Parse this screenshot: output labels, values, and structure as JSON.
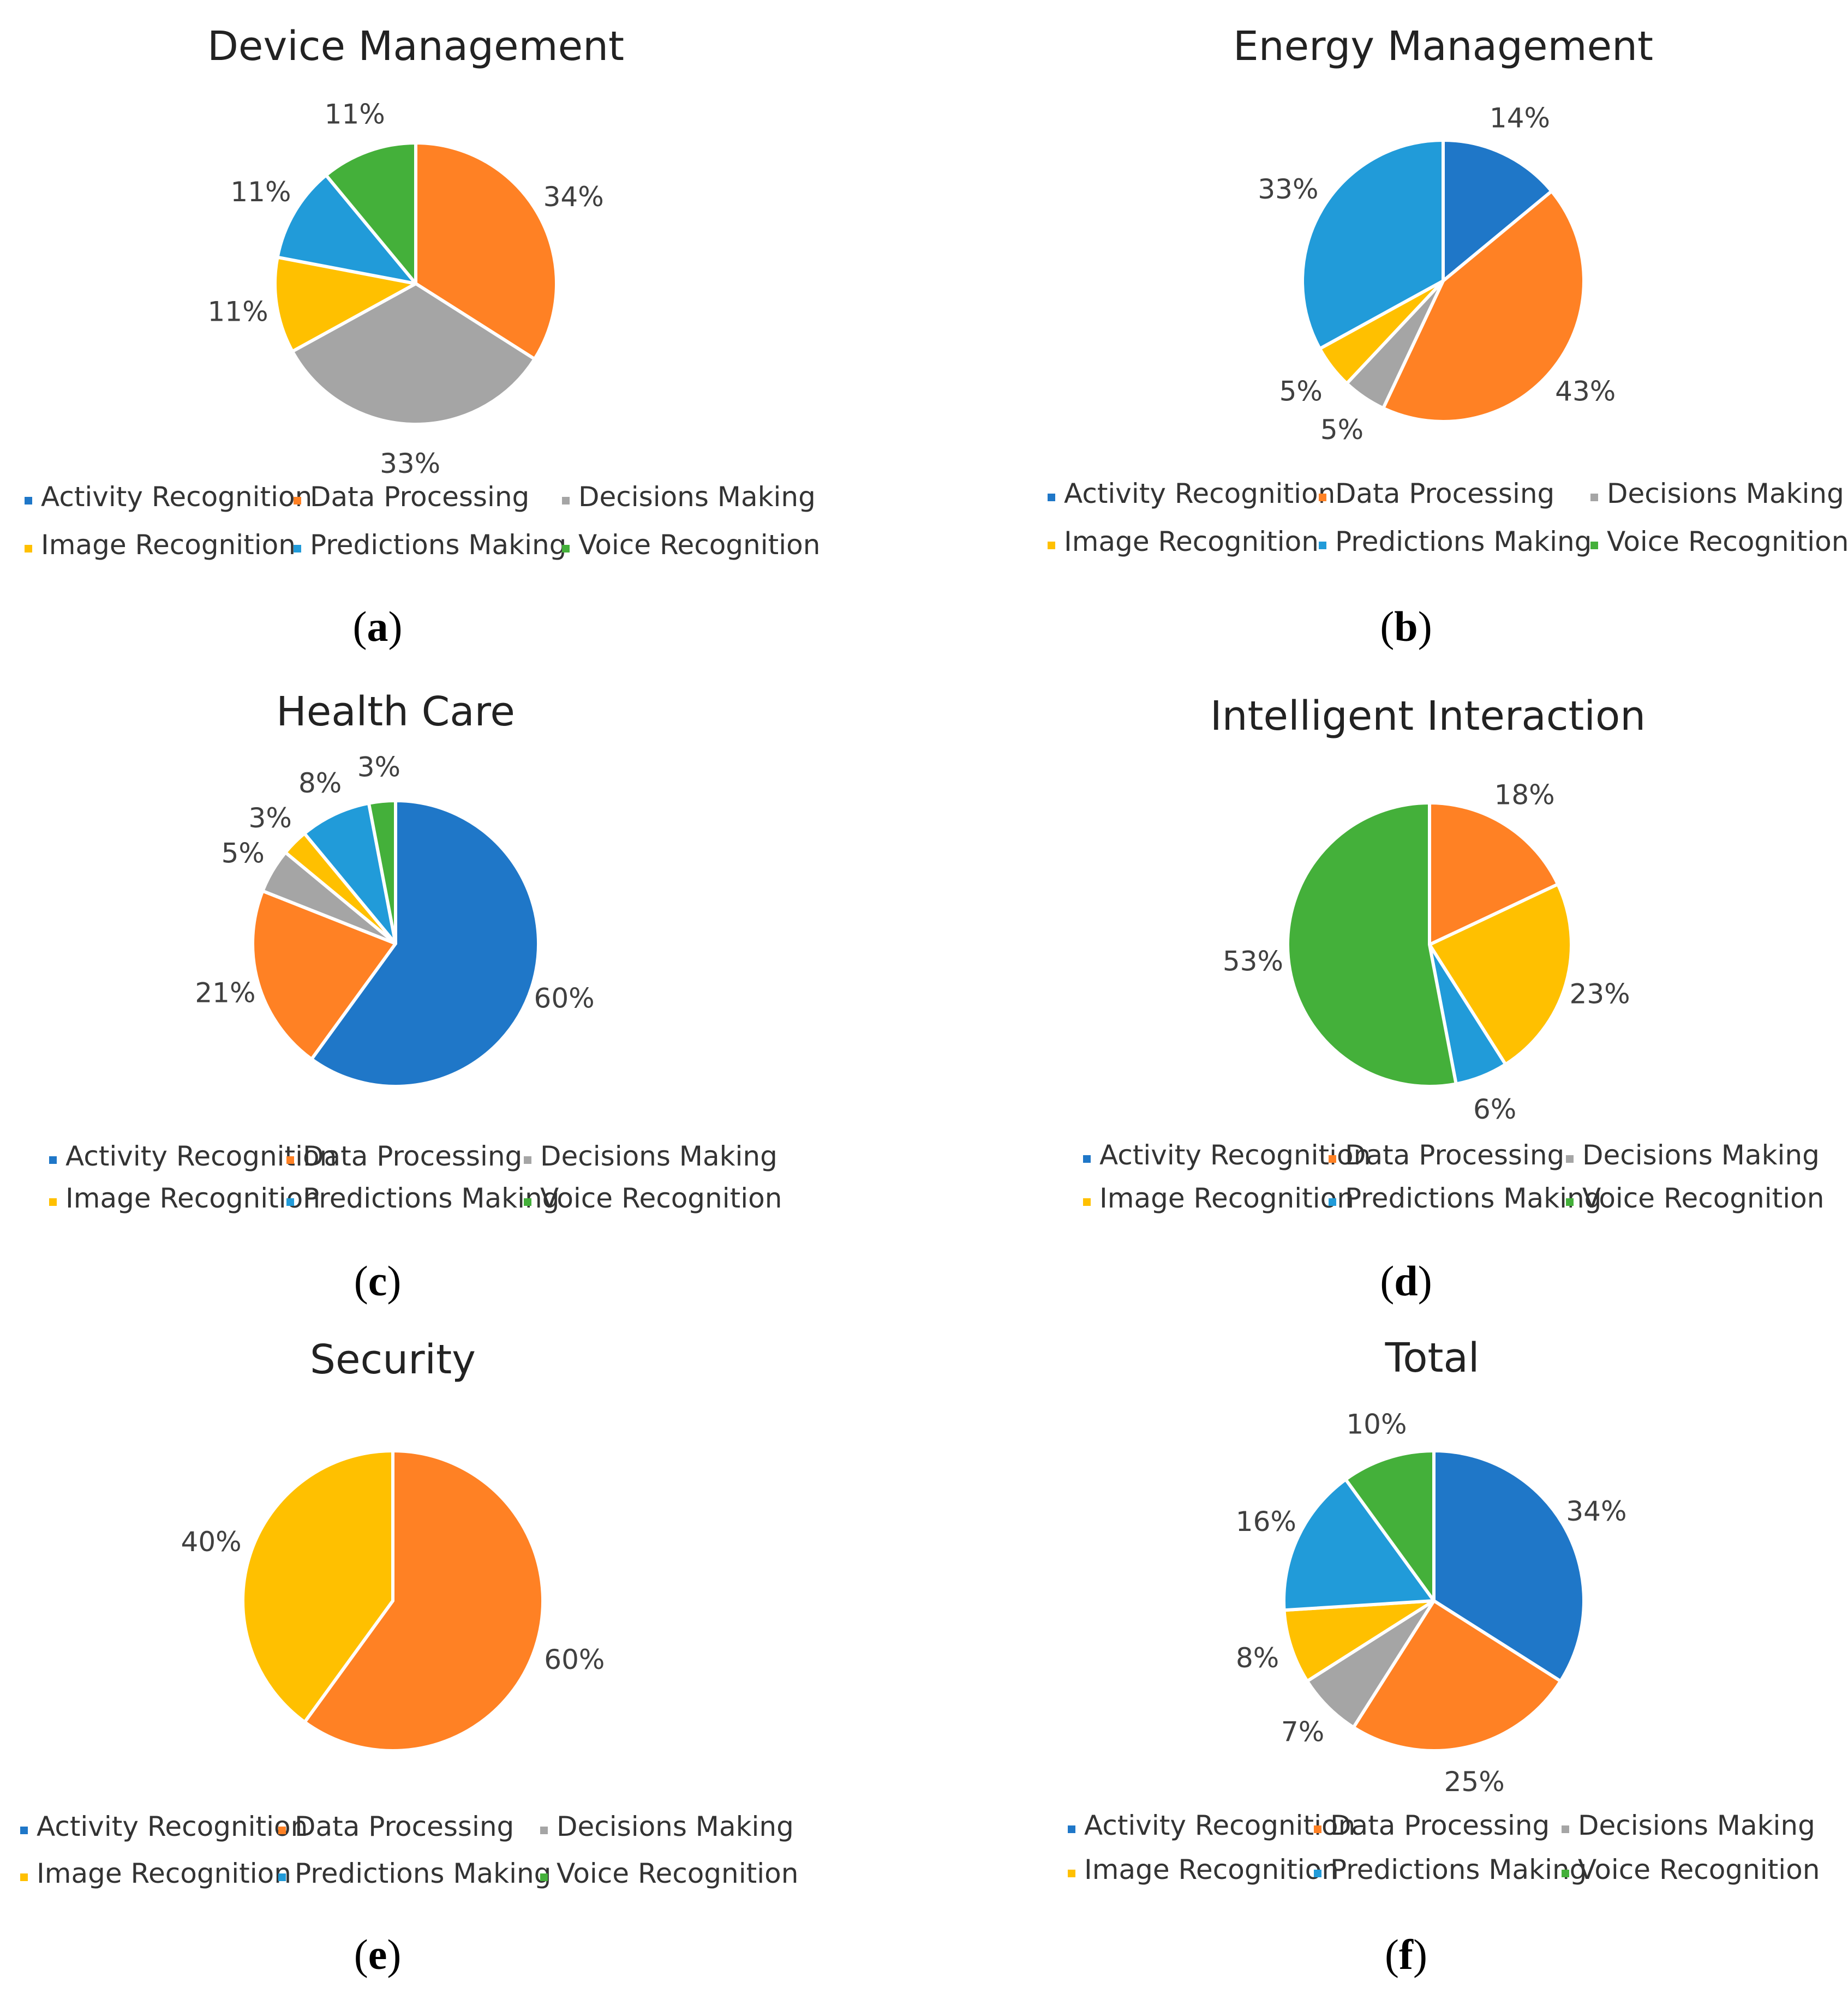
{
  "figure": {
    "legend_labels": [
      "Activity Recognition",
      "Data Processing",
      "Decisions Making",
      "Image Recognition",
      "Predictions Making",
      "Voice Recognition"
    ],
    "colors": {
      "Activity Recognition": "#1f77c8",
      "Data Processing": "#ff8124",
      "Decisions Making": "#a5a5a5",
      "Image Recognition": "#ffc000",
      "Predictions Making": "#219bd9",
      "Voice Recognition": "#44b03a"
    },
    "captions": [
      {
        "open": "(",
        "letter": "a",
        "close": ")"
      },
      {
        "open": "(",
        "letter": "b",
        "close": ")"
      },
      {
        "open": "(",
        "letter": "c",
        "close": ")"
      },
      {
        "open": "(",
        "letter": "d",
        "close": ")"
      },
      {
        "open": "(",
        "letter": "e",
        "close": ")"
      },
      {
        "open": "(",
        "letter": "f",
        "close": ")"
      }
    ]
  },
  "chart_data": [
    {
      "type": "pie",
      "title": "Device Management",
      "slices": [
        {
          "label": "Data Processing",
          "value": 34,
          "display": "34%"
        },
        {
          "label": "Decisions Making",
          "value": 33,
          "display": "33%"
        },
        {
          "label": "Image Recognition",
          "value": 11,
          "display": "11%"
        },
        {
          "label": "Predictions Making",
          "value": 11,
          "display": "11%"
        },
        {
          "label": "Voice Recognition",
          "value": 11,
          "display": "11%"
        }
      ],
      "legend": [
        "Activity Recognition",
        "Data Processing",
        "Decisions Making",
        "Image Recognition",
        "Predictions Making",
        "Voice Recognition"
      ]
    },
    {
      "type": "pie",
      "title": "Energy Management",
      "slices": [
        {
          "label": "Activity Recognition",
          "value": 14,
          "display": "14%"
        },
        {
          "label": "Data Processing",
          "value": 43,
          "display": "43%"
        },
        {
          "label": "Decisions Making",
          "value": 5,
          "display": "5%"
        },
        {
          "label": "Image Recognition",
          "value": 5,
          "display": "5%"
        },
        {
          "label": "Predictions Making",
          "value": 33,
          "display": "33%"
        }
      ],
      "legend": [
        "Activity Recognition",
        "Data Processing",
        "Decisions Making",
        "Image Recognition",
        "Predictions Making",
        "Voice Recognition"
      ]
    },
    {
      "type": "pie",
      "title": "Health Care",
      "slices": [
        {
          "label": "Activity Recognition",
          "value": 60,
          "display": "60%"
        },
        {
          "label": "Data Processing",
          "value": 21,
          "display": "21%"
        },
        {
          "label": "Decisions Making",
          "value": 5,
          "display": "5%"
        },
        {
          "label": "Image Recognition",
          "value": 3,
          "display": "3%"
        },
        {
          "label": "Predictions Making",
          "value": 8,
          "display": "8%"
        },
        {
          "label": "Voice Recognition",
          "value": 3,
          "display": "3%"
        }
      ],
      "legend": [
        "Activity Recognition",
        "Data Processing",
        "Decisions Making",
        "Image Recognition",
        "Predictions Making",
        "Voice Recognition"
      ]
    },
    {
      "type": "pie",
      "title": "Intelligent Interaction",
      "slices": [
        {
          "label": "Data Processing",
          "value": 18,
          "display": "18%"
        },
        {
          "label": "Image Recognition",
          "value": 23,
          "display": "23%"
        },
        {
          "label": "Predictions Making",
          "value": 6,
          "display": "6%"
        },
        {
          "label": "Voice Recognition",
          "value": 53,
          "display": "53%"
        }
      ],
      "legend": [
        "Activity Recognition",
        "Data Processing",
        "Decisions Making",
        "Image Recognition",
        "Predictions Making",
        "Voice Recognition"
      ]
    },
    {
      "type": "pie",
      "title": "Security",
      "slices": [
        {
          "label": "Data Processing",
          "value": 60,
          "display": "60%"
        },
        {
          "label": "Image Recognition",
          "value": 40,
          "display": "40%"
        }
      ],
      "legend": [
        "Activity Recognition",
        "Data Processing",
        "Decisions Making",
        "Image Recognition",
        "Predictions Making",
        "Voice Recognition"
      ]
    },
    {
      "type": "pie",
      "title": "Total",
      "slices": [
        {
          "label": "Activity Recognition",
          "value": 34,
          "display": "34%"
        },
        {
          "label": "Data Processing",
          "value": 25,
          "display": "25%"
        },
        {
          "label": "Decisions Making",
          "value": 7,
          "display": "7%"
        },
        {
          "label": "Image Recognition",
          "value": 8,
          "display": "8%"
        },
        {
          "label": "Predictions Making",
          "value": 16,
          "display": "16%"
        },
        {
          "label": "Voice Recognition",
          "value": 10,
          "display": "10%"
        }
      ],
      "legend": [
        "Activity Recognition",
        "Data Processing",
        "Decisions Making",
        "Image Recognition",
        "Predictions Making",
        "Voice Recognition"
      ]
    }
  ]
}
